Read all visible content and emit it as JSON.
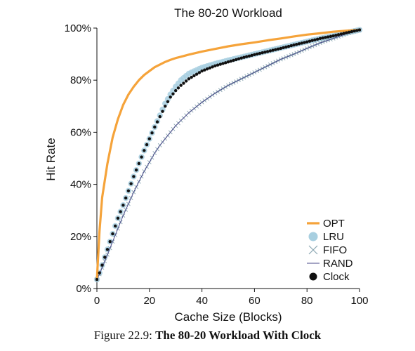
{
  "chart_data": {
    "type": "line",
    "title": "The 80-20 Workload",
    "xlabel": "Cache Size (Blocks)",
    "ylabel": "Hit Rate",
    "xlim": [
      0,
      100
    ],
    "ylim": [
      0,
      100
    ],
    "x_ticks": [
      "0",
      "20",
      "40",
      "60",
      "80",
      "100"
    ],
    "y_ticks": [
      "0%",
      "20%",
      "40%",
      "60%",
      "80%",
      "100%"
    ],
    "grid": false,
    "legend_position": "bottom-right",
    "x": [
      0,
      1,
      2,
      4,
      6,
      8,
      10,
      12,
      14,
      16,
      18,
      20,
      22,
      24,
      26,
      28,
      30,
      32,
      35,
      40,
      45,
      50,
      55,
      60,
      65,
      70,
      75,
      80,
      85,
      90,
      95,
      100
    ],
    "series": [
      {
        "name": "OPT",
        "marker": "line",
        "color": "#f5a33a",
        "values": [
          3.5,
          22,
          35,
          48,
          58,
          65,
          70.5,
          74.5,
          77.5,
          80,
          82,
          83.5,
          85,
          86,
          87,
          87.8,
          88.5,
          89,
          89.8,
          91,
          92,
          93,
          93.8,
          94.5,
          95.3,
          96,
          96.8,
          97.5,
          98,
          98.6,
          99,
          99.3
        ]
      },
      {
        "name": "LRU",
        "marker": "circle",
        "color": "#a8cfe0",
        "values": [
          3.5,
          6,
          9,
          15,
          21,
          27,
          32,
          37.5,
          43,
          48,
          53,
          57.5,
          62,
          66.5,
          71,
          74.5,
          77.5,
          80,
          82.5,
          84.8,
          86.3,
          87.6,
          88.8,
          90,
          91.2,
          92.4,
          93.6,
          94.8,
          96,
          97,
          98.2,
          99.3
        ]
      },
      {
        "name": "FIFO",
        "marker": "x",
        "color": "#8aa6b2",
        "values": [
          3.5,
          5.5,
          8,
          13,
          18,
          23,
          28,
          32.5,
          37,
          41,
          45,
          48.5,
          52,
          55,
          57.5,
          60,
          62.5,
          64.5,
          67.5,
          71.5,
          75,
          78,
          80.5,
          83,
          85.5,
          88,
          90,
          92.2,
          94.3,
          96,
          97.8,
          99.3
        ]
      },
      {
        "name": "RAND",
        "marker": "line",
        "color": "#4a4a8a",
        "values": [
          3.5,
          5.5,
          8,
          13,
          18,
          23,
          28,
          32.5,
          37,
          41,
          45,
          48.5,
          52,
          55,
          57.5,
          60,
          62.5,
          64.5,
          67.5,
          71.5,
          75,
          78,
          80.5,
          83,
          85.5,
          88,
          90,
          92.2,
          94.3,
          96,
          97.8,
          99.3
        ]
      },
      {
        "name": "Clock",
        "marker": "dot",
        "color": "#111111",
        "values": [
          3.5,
          6,
          9,
          15,
          21,
          27,
          32,
          37.5,
          43,
          48,
          53,
          57.5,
          62,
          66,
          70,
          73.5,
          76,
          78,
          80.5,
          83.5,
          85.5,
          87,
          88.5,
          89.8,
          91,
          92.2,
          93.5,
          94.7,
          96,
          97,
          98.2,
          99.3
        ]
      }
    ]
  },
  "caption": {
    "prefix": "Figure 22.9: ",
    "title": "The 80-20 Workload With Clock"
  }
}
